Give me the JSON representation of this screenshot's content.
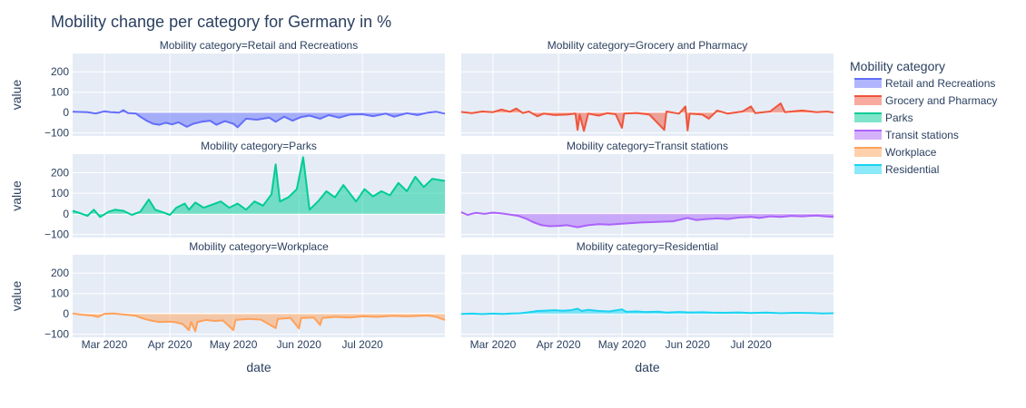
{
  "chart_data": {
    "type": "area",
    "title": "Mobility change per category for Germany in %",
    "xlabel": "date",
    "ylabel": "value",
    "x_range": [
      "2020-02-15",
      "2020-08-09"
    ],
    "ylim": [
      -115,
      290
    ],
    "y_ticks": [
      -100,
      0,
      100,
      200
    ],
    "y_tick_labels": [
      "−100",
      "0",
      "100",
      "200"
    ],
    "x_ticks": [
      "2020-03-01",
      "2020-04-01",
      "2020-05-01",
      "2020-06-01",
      "2020-07-01"
    ],
    "x_tick_labels": [
      "Mar 2020",
      "Apr 2020",
      "May 2020",
      "Jun 2020",
      "Jul 2020"
    ],
    "legend": {
      "title": "Mobility category",
      "position": "right"
    },
    "grid": true,
    "background": "#e5ecf6",
    "series": [
      {
        "name": "Retail and Recreations",
        "facet_title": "Mobility category=Retail and Recreations",
        "color": "#636efa",
        "fill": "rgba(99,110,250,0.5)",
        "points": [
          [
            "2020-02-15",
            4
          ],
          [
            "2020-02-22",
            2
          ],
          [
            "2020-02-26",
            -4
          ],
          [
            "2020-03-01",
            6
          ],
          [
            "2020-03-04",
            2
          ],
          [
            "2020-03-08",
            0
          ],
          [
            "2020-03-10",
            12
          ],
          [
            "2020-03-12",
            -2
          ],
          [
            "2020-03-16",
            -5
          ],
          [
            "2020-03-18",
            -20
          ],
          [
            "2020-03-21",
            -40
          ],
          [
            "2020-03-24",
            -55
          ],
          [
            "2020-03-27",
            -60
          ],
          [
            "2020-03-30",
            -50
          ],
          [
            "2020-04-02",
            -58
          ],
          [
            "2020-04-05",
            -48
          ],
          [
            "2020-04-09",
            -70
          ],
          [
            "2020-04-12",
            -55
          ],
          [
            "2020-04-16",
            -45
          ],
          [
            "2020-04-20",
            -40
          ],
          [
            "2020-04-23",
            -60
          ],
          [
            "2020-04-27",
            -42
          ],
          [
            "2020-05-01",
            -55
          ],
          [
            "2020-05-03",
            -72
          ],
          [
            "2020-05-07",
            -30
          ],
          [
            "2020-05-12",
            -35
          ],
          [
            "2020-05-18",
            -25
          ],
          [
            "2020-05-21",
            -45
          ],
          [
            "2020-05-25",
            -20
          ],
          [
            "2020-05-29",
            -40
          ],
          [
            "2020-06-02",
            -22
          ],
          [
            "2020-06-06",
            -15
          ],
          [
            "2020-06-11",
            -30
          ],
          [
            "2020-06-15",
            -12
          ],
          [
            "2020-06-20",
            -25
          ],
          [
            "2020-06-25",
            -10
          ],
          [
            "2020-07-01",
            -8
          ],
          [
            "2020-07-06",
            -18
          ],
          [
            "2020-07-12",
            -5
          ],
          [
            "2020-07-16",
            -20
          ],
          [
            "2020-07-22",
            -3
          ],
          [
            "2020-07-27",
            -12
          ],
          [
            "2020-08-01",
            0
          ],
          [
            "2020-08-05",
            4
          ],
          [
            "2020-08-09",
            -5
          ]
        ]
      },
      {
        "name": "Grocery and Pharmacy",
        "facet_title": "Mobility category=Grocery and Pharmacy",
        "color": "#ef553b",
        "fill": "rgba(239,85,59,0.5)",
        "points": [
          [
            "2020-02-15",
            3
          ],
          [
            "2020-02-20",
            -3
          ],
          [
            "2020-02-25",
            5
          ],
          [
            "2020-03-01",
            2
          ],
          [
            "2020-03-05",
            15
          ],
          [
            "2020-03-09",
            4
          ],
          [
            "2020-03-12",
            20
          ],
          [
            "2020-03-15",
            -2
          ],
          [
            "2020-03-18",
            5
          ],
          [
            "2020-03-22",
            -18
          ],
          [
            "2020-03-25",
            -5
          ],
          [
            "2020-03-30",
            -12
          ],
          [
            "2020-04-05",
            -10
          ],
          [
            "2020-04-09",
            -5
          ],
          [
            "2020-04-10",
            -85
          ],
          [
            "2020-04-11",
            -10
          ],
          [
            "2020-04-13",
            -90
          ],
          [
            "2020-04-15",
            -5
          ],
          [
            "2020-04-20",
            -15
          ],
          [
            "2020-04-24",
            -3
          ],
          [
            "2020-04-28",
            -8
          ],
          [
            "2020-05-01",
            -75
          ],
          [
            "2020-05-02",
            -5
          ],
          [
            "2020-05-08",
            -2
          ],
          [
            "2020-05-14",
            -10
          ],
          [
            "2020-05-21",
            -85
          ],
          [
            "2020-05-22",
            5
          ],
          [
            "2020-05-28",
            -5
          ],
          [
            "2020-05-31",
            30
          ],
          [
            "2020-06-01",
            -88
          ],
          [
            "2020-06-02",
            -5
          ],
          [
            "2020-06-08",
            -10
          ],
          [
            "2020-06-11",
            -30
          ],
          [
            "2020-06-15",
            10
          ],
          [
            "2020-06-20",
            -5
          ],
          [
            "2020-06-27",
            5
          ],
          [
            "2020-07-01",
            30
          ],
          [
            "2020-07-03",
            -3
          ],
          [
            "2020-07-10",
            5
          ],
          [
            "2020-07-15",
            45
          ],
          [
            "2020-07-17",
            2
          ],
          [
            "2020-07-25",
            10
          ],
          [
            "2020-08-01",
            2
          ],
          [
            "2020-08-06",
            5
          ],
          [
            "2020-08-09",
            0
          ]
        ]
      },
      {
        "name": "Parks",
        "facet_title": "Mobility category=Parks",
        "color": "#00cc96",
        "fill": "rgba(0,204,150,0.5)",
        "points": [
          [
            "2020-02-15",
            15
          ],
          [
            "2020-02-18",
            5
          ],
          [
            "2020-02-22",
            -10
          ],
          [
            "2020-02-25",
            20
          ],
          [
            "2020-02-28",
            -15
          ],
          [
            "2020-03-03",
            10
          ],
          [
            "2020-03-06",
            20
          ],
          [
            "2020-03-10",
            15
          ],
          [
            "2020-03-14",
            -5
          ],
          [
            "2020-03-18",
            10
          ],
          [
            "2020-03-22",
            70
          ],
          [
            "2020-03-25",
            20
          ],
          [
            "2020-03-28",
            10
          ],
          [
            "2020-04-01",
            -5
          ],
          [
            "2020-04-04",
            30
          ],
          [
            "2020-04-08",
            50
          ],
          [
            "2020-04-10",
            20
          ],
          [
            "2020-04-13",
            55
          ],
          [
            "2020-04-17",
            30
          ],
          [
            "2020-04-21",
            45
          ],
          [
            "2020-04-25",
            60
          ],
          [
            "2020-04-29",
            30
          ],
          [
            "2020-05-03",
            50
          ],
          [
            "2020-05-07",
            20
          ],
          [
            "2020-05-11",
            60
          ],
          [
            "2020-05-15",
            40
          ],
          [
            "2020-05-19",
            95
          ],
          [
            "2020-05-21",
            240
          ],
          [
            "2020-05-23",
            60
          ],
          [
            "2020-05-27",
            80
          ],
          [
            "2020-05-31",
            120
          ],
          [
            "2020-06-03",
            275
          ],
          [
            "2020-06-06",
            20
          ],
          [
            "2020-06-10",
            60
          ],
          [
            "2020-06-14",
            110
          ],
          [
            "2020-06-18",
            80
          ],
          [
            "2020-06-22",
            140
          ],
          [
            "2020-06-25",
            100
          ],
          [
            "2020-06-28",
            60
          ],
          [
            "2020-07-02",
            120
          ],
          [
            "2020-07-06",
            85
          ],
          [
            "2020-07-10",
            110
          ],
          [
            "2020-07-14",
            90
          ],
          [
            "2020-07-18",
            150
          ],
          [
            "2020-07-22",
            110
          ],
          [
            "2020-07-26",
            180
          ],
          [
            "2020-07-30",
            130
          ],
          [
            "2020-08-03",
            170
          ],
          [
            "2020-08-09",
            160
          ]
        ]
      },
      {
        "name": "Transit stations",
        "facet_title": "Mobility category=Transit stations",
        "color": "#ab63fa",
        "fill": "rgba(171,99,250,0.5)",
        "points": [
          [
            "2020-02-15",
            8
          ],
          [
            "2020-02-18",
            -5
          ],
          [
            "2020-02-22",
            5
          ],
          [
            "2020-02-26",
            0
          ],
          [
            "2020-03-01",
            6
          ],
          [
            "2020-03-05",
            2
          ],
          [
            "2020-03-09",
            -3
          ],
          [
            "2020-03-13",
            -10
          ],
          [
            "2020-03-17",
            -25
          ],
          [
            "2020-03-20",
            -40
          ],
          [
            "2020-03-24",
            -55
          ],
          [
            "2020-03-28",
            -60
          ],
          [
            "2020-04-01",
            -58
          ],
          [
            "2020-04-05",
            -55
          ],
          [
            "2020-04-10",
            -65
          ],
          [
            "2020-04-15",
            -55
          ],
          [
            "2020-04-20",
            -50
          ],
          [
            "2020-04-25",
            -52
          ],
          [
            "2020-05-01",
            -48
          ],
          [
            "2020-05-05",
            -45
          ],
          [
            "2020-05-10",
            -42
          ],
          [
            "2020-05-15",
            -40
          ],
          [
            "2020-05-20",
            -38
          ],
          [
            "2020-05-25",
            -36
          ],
          [
            "2020-06-01",
            -20
          ],
          [
            "2020-06-05",
            -30
          ],
          [
            "2020-06-10",
            -25
          ],
          [
            "2020-06-15",
            -22
          ],
          [
            "2020-06-20",
            -25
          ],
          [
            "2020-06-25",
            -18
          ],
          [
            "2020-07-01",
            -15
          ],
          [
            "2020-07-05",
            -20
          ],
          [
            "2020-07-10",
            -12
          ],
          [
            "2020-07-15",
            -15
          ],
          [
            "2020-07-20",
            -10
          ],
          [
            "2020-07-25",
            -12
          ],
          [
            "2020-08-01",
            -8
          ],
          [
            "2020-08-05",
            -12
          ],
          [
            "2020-08-09",
            -15
          ]
        ]
      },
      {
        "name": "Workplace",
        "facet_title": "Mobility category=Workplace",
        "color": "#ffa15a",
        "fill": "rgba(255,161,90,0.5)",
        "points": [
          [
            "2020-02-15",
            2
          ],
          [
            "2020-02-20",
            -5
          ],
          [
            "2020-02-24",
            -8
          ],
          [
            "2020-02-27",
            -15
          ],
          [
            "2020-03-01",
            0
          ],
          [
            "2020-03-05",
            2
          ],
          [
            "2020-03-09",
            -2
          ],
          [
            "2020-03-12",
            -5
          ],
          [
            "2020-03-16",
            -10
          ],
          [
            "2020-03-20",
            -25
          ],
          [
            "2020-03-24",
            -35
          ],
          [
            "2020-03-27",
            -40
          ],
          [
            "2020-03-31",
            -38
          ],
          [
            "2020-04-03",
            -40
          ],
          [
            "2020-04-07",
            -50
          ],
          [
            "2020-04-10",
            -80
          ],
          [
            "2020-04-11",
            -40
          ],
          [
            "2020-04-13",
            -85
          ],
          [
            "2020-04-14",
            -40
          ],
          [
            "2020-04-18",
            -30
          ],
          [
            "2020-04-22",
            -35
          ],
          [
            "2020-04-26",
            -32
          ],
          [
            "2020-05-01",
            -80
          ],
          [
            "2020-05-02",
            -30
          ],
          [
            "2020-05-08",
            -25
          ],
          [
            "2020-05-14",
            -28
          ],
          [
            "2020-05-21",
            -70
          ],
          [
            "2020-05-22",
            -25
          ],
          [
            "2020-05-28",
            -20
          ],
          [
            "2020-06-01",
            -72
          ],
          [
            "2020-06-02",
            -20
          ],
          [
            "2020-06-08",
            -18
          ],
          [
            "2020-06-11",
            -55
          ],
          [
            "2020-06-12",
            -20
          ],
          [
            "2020-06-18",
            -15
          ],
          [
            "2020-06-25",
            -18
          ],
          [
            "2020-07-01",
            -12
          ],
          [
            "2020-07-08",
            -15
          ],
          [
            "2020-07-15",
            -10
          ],
          [
            "2020-07-22",
            -12
          ],
          [
            "2020-08-01",
            -8
          ],
          [
            "2020-08-05",
            -15
          ],
          [
            "2020-08-09",
            -30
          ]
        ]
      },
      {
        "name": "Residential",
        "facet_title": "Mobility category=Residential",
        "color": "#19d3f3",
        "fill": "rgba(25,211,243,0.5)",
        "points": [
          [
            "2020-02-15",
            0
          ],
          [
            "2020-02-20",
            1
          ],
          [
            "2020-02-25",
            -1
          ],
          [
            "2020-03-01",
            1
          ],
          [
            "2020-03-06",
            0
          ],
          [
            "2020-03-10",
            2
          ],
          [
            "2020-03-14",
            3
          ],
          [
            "2020-03-18",
            8
          ],
          [
            "2020-03-22",
            14
          ],
          [
            "2020-03-26",
            16
          ],
          [
            "2020-03-30",
            18
          ],
          [
            "2020-04-03",
            15
          ],
          [
            "2020-04-07",
            18
          ],
          [
            "2020-04-10",
            25
          ],
          [
            "2020-04-12",
            14
          ],
          [
            "2020-04-15",
            20
          ],
          [
            "2020-04-20",
            14
          ],
          [
            "2020-04-25",
            12
          ],
          [
            "2020-05-01",
            22
          ],
          [
            "2020-05-03",
            10
          ],
          [
            "2020-05-08",
            12
          ],
          [
            "2020-05-12",
            9
          ],
          [
            "2020-05-18",
            11
          ],
          [
            "2020-05-22",
            6
          ],
          [
            "2020-05-28",
            9
          ],
          [
            "2020-06-02",
            7
          ],
          [
            "2020-06-08",
            8
          ],
          [
            "2020-06-12",
            6
          ],
          [
            "2020-06-18",
            5
          ],
          [
            "2020-06-25",
            7
          ],
          [
            "2020-07-01",
            4
          ],
          [
            "2020-07-08",
            6
          ],
          [
            "2020-07-15",
            3
          ],
          [
            "2020-07-22",
            5
          ],
          [
            "2020-07-29",
            4
          ],
          [
            "2020-08-04",
            2
          ],
          [
            "2020-08-09",
            3
          ]
        ]
      }
    ]
  }
}
